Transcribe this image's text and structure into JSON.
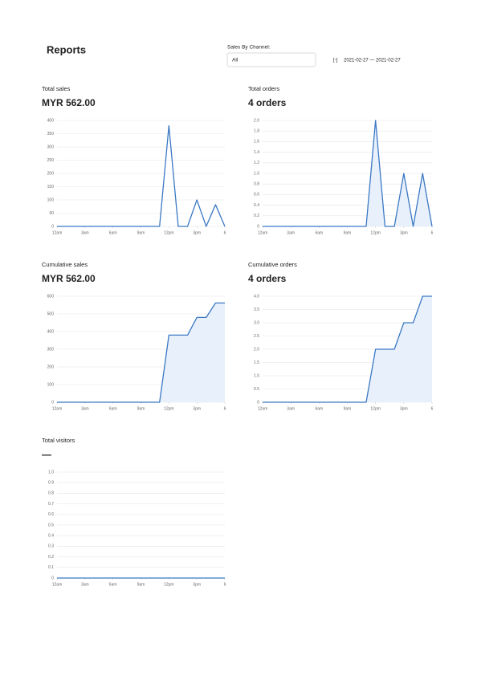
{
  "header": {
    "title": "Reports",
    "filter_label": "Sales By Channel:",
    "filter_value": "All",
    "date_icon": "[-]",
    "date_range": "2021-02-27 — 2021-02-27"
  },
  "chart_data": [
    {
      "type": "line",
      "title": "Total sales",
      "summary": "MYR 562.00",
      "color": "#3b78c4",
      "area": false,
      "x": [
        0,
        1,
        2,
        3,
        4,
        5,
        6,
        7,
        8,
        9,
        10,
        11,
        12,
        13,
        14,
        15,
        16,
        17,
        18
      ],
      "values": [
        0,
        0,
        0,
        0,
        0,
        0,
        0,
        0,
        0,
        0,
        0,
        0,
        380,
        0,
        0,
        100,
        0,
        82,
        0
      ],
      "xlim": [
        0,
        18
      ],
      "xticks": [
        {
          "value": 0,
          "label": "12am"
        },
        {
          "value": 3,
          "label": "3am"
        },
        {
          "value": 6,
          "label": "6am"
        },
        {
          "value": 9,
          "label": "9am"
        },
        {
          "value": 12,
          "label": "12pm"
        },
        {
          "value": 15,
          "label": "3pm"
        },
        {
          "value": 18,
          "label": "6"
        }
      ],
      "ylim": [
        0,
        400
      ],
      "yticks": [
        0,
        50,
        100,
        150,
        200,
        250,
        300,
        350,
        400
      ],
      "grid": true
    },
    {
      "type": "line",
      "title": "Total orders",
      "summary": "4 orders",
      "color": "#3b78c4",
      "area": true,
      "x": [
        0,
        1,
        2,
        3,
        4,
        5,
        6,
        7,
        8,
        9,
        10,
        11,
        12,
        13,
        14,
        15,
        16,
        17,
        18
      ],
      "values": [
        0,
        0,
        0,
        0,
        0,
        0,
        0,
        0,
        0,
        0,
        0,
        0,
        2,
        0,
        0,
        1,
        0,
        1,
        0
      ],
      "xlim": [
        0,
        18
      ],
      "xticks": [
        {
          "value": 0,
          "label": "12am"
        },
        {
          "value": 3,
          "label": "3am"
        },
        {
          "value": 6,
          "label": "6am"
        },
        {
          "value": 9,
          "label": "9am"
        },
        {
          "value": 12,
          "label": "12pm"
        },
        {
          "value": 15,
          "label": "3pm"
        },
        {
          "value": 18,
          "label": "6"
        }
      ],
      "ylim": [
        0,
        2
      ],
      "yticks": [
        0,
        0.2,
        0.4,
        0.6,
        0.8,
        {
          "value": 1,
          "label": "1.0"
        },
        1.2,
        1.4,
        1.6,
        1.8,
        {
          "value": 2,
          "label": "2.0"
        }
      ],
      "grid": true
    },
    {
      "type": "line",
      "title": "Cumulative sales",
      "summary": "MYR 562.00",
      "color": "#3b78c4",
      "area": true,
      "x": [
        0,
        1,
        2,
        3,
        4,
        5,
        6,
        7,
        8,
        9,
        10,
        11,
        12,
        13,
        14,
        15,
        16,
        17,
        18
      ],
      "values": [
        0,
        0,
        0,
        0,
        0,
        0,
        0,
        0,
        0,
        0,
        0,
        0,
        380,
        380,
        380,
        480,
        480,
        562,
        562
      ],
      "xlim": [
        0,
        18
      ],
      "xticks": [
        {
          "value": 0,
          "label": "12am"
        },
        {
          "value": 3,
          "label": "3am"
        },
        {
          "value": 6,
          "label": "6am"
        },
        {
          "value": 9,
          "label": "9am"
        },
        {
          "value": 12,
          "label": "12pm"
        },
        {
          "value": 15,
          "label": "3pm"
        },
        {
          "value": 18,
          "label": "6"
        }
      ],
      "ylim": [
        0,
        600
      ],
      "yticks": [
        0,
        100,
        200,
        300,
        400,
        500,
        600
      ],
      "grid": true
    },
    {
      "type": "line",
      "title": "Cumulative orders",
      "summary": "4 orders",
      "color": "#3b78c4",
      "area": true,
      "x": [
        0,
        1,
        2,
        3,
        4,
        5,
        6,
        7,
        8,
        9,
        10,
        11,
        12,
        13,
        14,
        15,
        16,
        17,
        18
      ],
      "values": [
        0,
        0,
        0,
        0,
        0,
        0,
        0,
        0,
        0,
        0,
        0,
        0,
        2,
        2,
        2,
        3,
        3,
        4,
        4
      ],
      "xlim": [
        0,
        18
      ],
      "xticks": [
        {
          "value": 0,
          "label": "12am"
        },
        {
          "value": 3,
          "label": "3am"
        },
        {
          "value": 6,
          "label": "6am"
        },
        {
          "value": 9,
          "label": "9am"
        },
        {
          "value": 12,
          "label": "12pm"
        },
        {
          "value": 15,
          "label": "3pm"
        },
        {
          "value": 18,
          "label": "6"
        }
      ],
      "ylim": [
        0,
        4
      ],
      "yticks": [
        0,
        0.5,
        {
          "value": 1,
          "label": "1.0"
        },
        1.5,
        {
          "value": 2,
          "label": "2.0"
        },
        2.5,
        {
          "value": 3,
          "label": "3.0"
        },
        3.5,
        {
          "value": 4,
          "label": "4.0"
        }
      ],
      "grid": true
    },
    {
      "type": "line",
      "title": "Total visitors",
      "summary": "—",
      "color": "#3b78c4",
      "area": true,
      "x": [
        0,
        1,
        2,
        3,
        4,
        5,
        6,
        7,
        8,
        9,
        10,
        11,
        12,
        13,
        14,
        15,
        16,
        17,
        18
      ],
      "values": [
        0,
        0,
        0,
        0,
        0,
        0,
        0,
        0,
        0,
        0,
        0,
        0,
        0,
        0,
        0,
        0,
        0,
        0,
        0
      ],
      "xlim": [
        0,
        18
      ],
      "xticks": [
        {
          "value": 0,
          "label": "12am"
        },
        {
          "value": 3,
          "label": "3am"
        },
        {
          "value": 6,
          "label": "6am"
        },
        {
          "value": 9,
          "label": "9am"
        },
        {
          "value": 12,
          "label": "12pm"
        },
        {
          "value": 15,
          "label": "3pm"
        },
        {
          "value": 18,
          "label": "6"
        }
      ],
      "ylim": [
        0,
        1
      ],
      "yticks": [
        0,
        0.1,
        0.2,
        0.3,
        0.4,
        0.5,
        0.6,
        0.7,
        0.8,
        0.9,
        {
          "value": 1,
          "label": "1.0"
        }
      ],
      "grid": true
    }
  ]
}
